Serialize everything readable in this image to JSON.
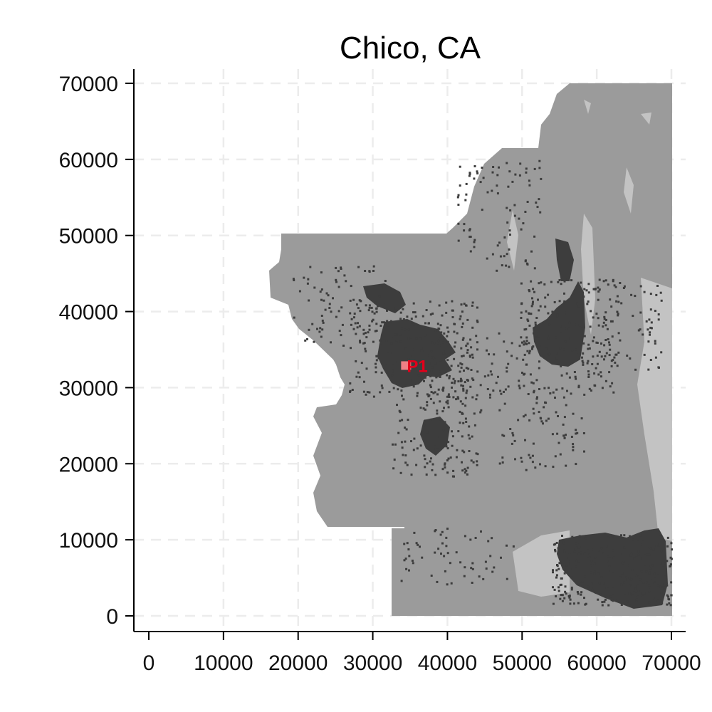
{
  "title": "Chico, CA",
  "chart_data": {
    "type": "raster-map",
    "title": "Chico, CA",
    "xlim": [
      0,
      70000
    ],
    "ylim": [
      0,
      70000
    ],
    "x_ticks": [
      "0",
      "10000",
      "20000",
      "30000",
      "40000",
      "50000",
      "60000",
      "70000"
    ],
    "y_ticks": [
      "0",
      "10000",
      "20000",
      "30000",
      "40000",
      "50000",
      "60000",
      "70000"
    ],
    "x_tick_values": [
      0,
      10000,
      20000,
      30000,
      40000,
      50000,
      60000,
      70000
    ],
    "y_tick_values": [
      0,
      10000,
      20000,
      30000,
      40000,
      50000,
      60000,
      70000
    ],
    "grid": true,
    "colors": {
      "study_area": "#9b9b9b",
      "urban": "#3d3d3d",
      "light_patch": "#c3c3c3",
      "grid": "#ececec",
      "marker": "#f07f86",
      "marker_label": "#e3001b"
    },
    "marker": {
      "label": "P1",
      "x": 35700,
      "y": 32900
    }
  }
}
